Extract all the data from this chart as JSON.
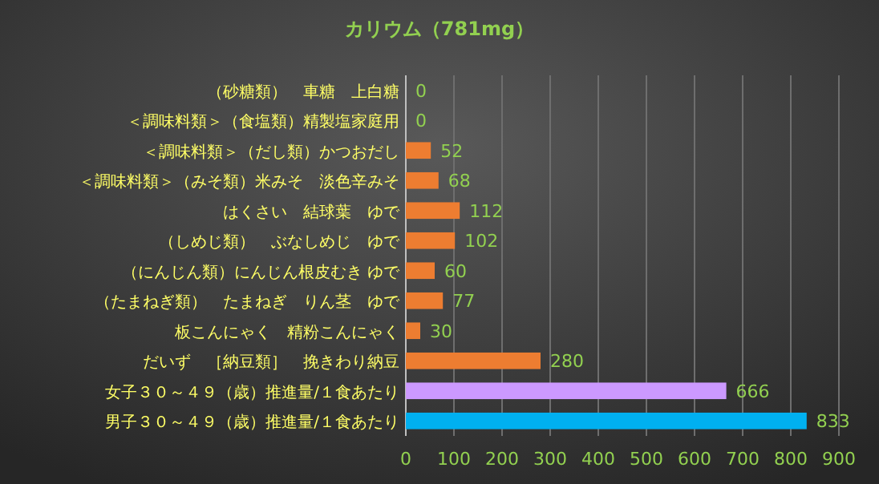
{
  "chart_data": {
    "type": "bar",
    "orientation": "horizontal",
    "title": "カリウム（781mg）",
    "categories": [
      "（砂糖類）　車糖　上白糖",
      "＜調味料類＞（食塩類）精製塩家庭用",
      "＜調味料類＞（だし類）かつおだし",
      "＜調味料類＞（みそ類）米みそ　淡色辛みそ",
      "はくさい　結球葉　ゆで",
      "（しめじ類）　ぶなしめじ　ゆで",
      "（にんじん類）にんじん根皮むき ゆで",
      "（たまねぎ類）　たまねぎ　りん茎　ゆで",
      "板こんにゃく　精粉こんにゃく",
      "だいず　［納豆類］　挽きわり納豆",
      "女子３０～４９（歳）推進量/１食あたり",
      "男子３０～４９（歳）推進量/１食あたり"
    ],
    "values": [
      0,
      0,
      52,
      68,
      112,
      102,
      60,
      77,
      30,
      280,
      666,
      833
    ],
    "colors": [
      "#ed7d31",
      "#ed7d31",
      "#ed7d31",
      "#ed7d31",
      "#ed7d31",
      "#ed7d31",
      "#ed7d31",
      "#ed7d31",
      "#ed7d31",
      "#ed7d31",
      "#cc99ff",
      "#00b0f0"
    ],
    "xlim": [
      0,
      900
    ],
    "xticks": [
      0,
      100,
      200,
      300,
      400,
      500,
      600,
      700,
      800,
      900
    ],
    "grid": "x",
    "data_labels": true
  }
}
